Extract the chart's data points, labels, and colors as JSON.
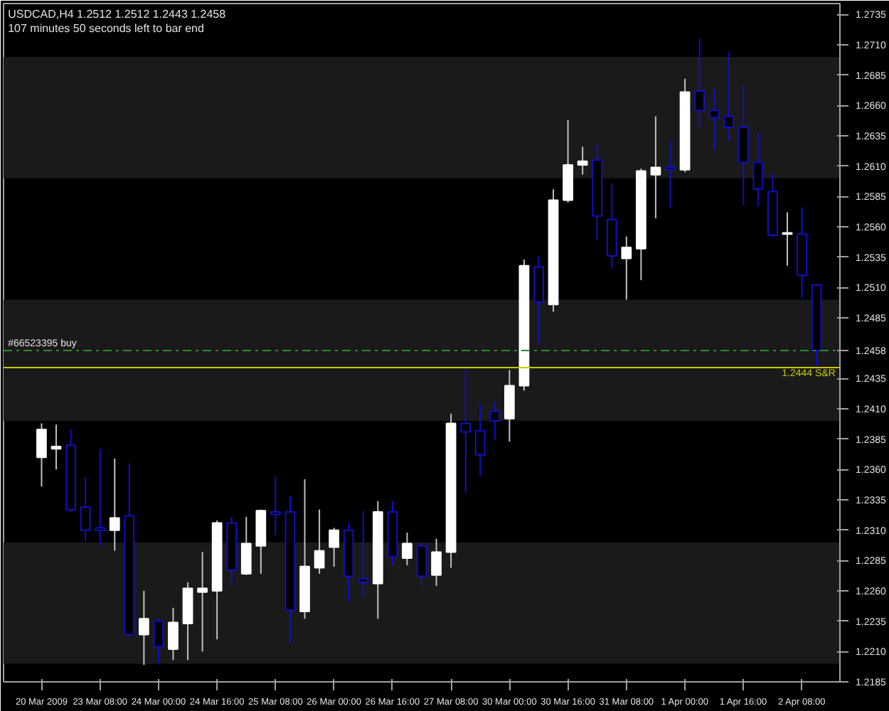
{
  "chart_data": {
    "type": "candlestick",
    "title": "USDCAD,H4  1.2512 1.2512 1.2443 1.2458",
    "subtitle": "107 minutes 50 seconds left to bar end",
    "categories": [
      "20 Mar 2009",
      null,
      null,
      null,
      "23 Mar 08:00",
      null,
      null,
      null,
      "24 Mar 00:00",
      null,
      null,
      null,
      "24 Mar 16:00",
      null,
      null,
      null,
      "25 Mar 08:00",
      null,
      null,
      null,
      "26 Mar 00:00",
      null,
      null,
      null,
      "26 Mar 16:00",
      null,
      null,
      null,
      "27 Mar 08:00",
      null,
      null,
      null,
      "30 Mar 00:00",
      null,
      null,
      null,
      "30 Mar 16:00",
      null,
      null,
      null,
      "31 Mar 08:00",
      null,
      null,
      null,
      "1 Apr 00:00",
      null,
      null,
      null,
      "1 Apr 16:00",
      null,
      null,
      null,
      "2 Apr 08:00",
      null
    ],
    "ohlc": [
      [
        1.237,
        1.2398,
        1.2346,
        1.2393
      ],
      [
        1.2377,
        1.2397,
        1.236,
        1.2379
      ],
      [
        1.238,
        1.2393,
        1.2325,
        1.2327
      ],
      [
        1.2329,
        1.2354,
        1.2301,
        1.231
      ],
      [
        1.2312,
        1.2377,
        1.2297,
        1.231
      ],
      [
        1.231,
        1.2369,
        1.2293,
        1.232
      ],
      [
        1.2322,
        1.2365,
        1.2222,
        1.2224
      ],
      [
        1.2224,
        1.226,
        1.2199,
        1.2237
      ],
      [
        1.2235,
        1.2237,
        1.22,
        1.2214
      ],
      [
        1.2212,
        1.2246,
        1.2203,
        1.2234
      ],
      [
        1.2233,
        1.2267,
        1.2203,
        1.2262
      ],
      [
        1.2259,
        1.2292,
        1.221,
        1.2262
      ],
      [
        1.226,
        1.2318,
        1.222,
        1.2316
      ],
      [
        1.2316,
        1.2321,
        1.2264,
        1.2277
      ],
      [
        1.2274,
        1.2321,
        1.2273,
        1.2299
      ],
      [
        1.2297,
        1.2327,
        1.2274,
        1.2326
      ],
      [
        1.2325,
        1.2354,
        1.2306,
        1.2323
      ],
      [
        1.2325,
        1.2338,
        1.2217,
        1.2244
      ],
      [
        1.2243,
        1.2352,
        1.2237,
        1.228
      ],
      [
        1.2279,
        1.2327,
        1.2274,
        1.2293
      ],
      [
        1.2296,
        1.2312,
        1.228,
        1.231
      ],
      [
        1.231,
        1.2316,
        1.2251,
        1.2272
      ],
      [
        1.227,
        1.2326,
        1.2254,
        1.2267
      ],
      [
        1.2266,
        1.2334,
        1.2237,
        1.2325
      ],
      [
        1.2325,
        1.2334,
        1.2281,
        1.2288
      ],
      [
        1.2287,
        1.2308,
        1.2281,
        1.2299
      ],
      [
        1.2297,
        1.23,
        1.2264,
        1.2272
      ],
      [
        1.2273,
        1.2303,
        1.2264,
        1.2292
      ],
      [
        1.2292,
        1.2406,
        1.2279,
        1.2398
      ],
      [
        1.2398,
        1.2444,
        1.2341,
        1.2391
      ],
      [
        1.2392,
        1.2414,
        1.2355,
        1.2372
      ],
      [
        1.2408,
        1.2416,
        1.2384,
        1.24
      ],
      [
        1.2402,
        1.2442,
        1.2383,
        1.2429
      ],
      [
        1.2429,
        1.2533,
        1.2425,
        1.2528
      ],
      [
        1.2527,
        1.2536,
        1.2464,
        1.2498
      ],
      [
        1.2496,
        1.2591,
        1.249,
        1.2582
      ],
      [
        1.2582,
        1.2648,
        1.258,
        1.2611
      ],
      [
        1.2611,
        1.2626,
        1.2603,
        1.2614
      ],
      [
        1.2615,
        1.2629,
        1.2549,
        1.2569
      ],
      [
        1.2566,
        1.2596,
        1.2526,
        1.2536
      ],
      [
        1.2534,
        1.2552,
        1.25,
        1.2543
      ],
      [
        1.2542,
        1.2608,
        1.2516,
        1.2606
      ],
      [
        1.2603,
        1.2651,
        1.2567,
        1.2609
      ],
      [
        1.2609,
        1.2631,
        1.2576,
        1.2607
      ],
      [
        1.2607,
        1.2682,
        1.2605,
        1.2671
      ],
      [
        1.2672,
        1.2715,
        1.2642,
        1.2656
      ],
      [
        1.2656,
        1.2674,
        1.2623,
        1.265
      ],
      [
        1.2651,
        1.2704,
        1.263,
        1.2642
      ],
      [
        1.2642,
        1.2677,
        1.2578,
        1.2613
      ],
      [
        1.2613,
        1.2638,
        1.2577,
        1.2591
      ],
      [
        1.2589,
        1.2604,
        1.2552,
        1.2553
      ],
      [
        1.2554,
        1.2572,
        1.2528,
        1.2555
      ],
      [
        1.2554,
        1.2576,
        1.2501,
        1.252
      ],
      [
        1.2512,
        1.2512,
        1.2443,
        1.2458
      ]
    ],
    "colors": [
      "#ffffff",
      "#ffffff",
      "#1010c0",
      "#1010c0",
      "#1010c0",
      "#ffffff",
      "#1010c0",
      "#ffffff",
      "#1010c0",
      "#ffffff",
      "#ffffff",
      "#ffffff",
      "#ffffff",
      "#1010c0",
      "#ffffff",
      "#ffffff",
      "#1010c0",
      "#1010c0",
      "#ffffff",
      "#ffffff",
      "#ffffff",
      "#1010c0",
      "#1010c0",
      "#ffffff",
      "#1010c0",
      "#ffffff",
      "#1010c0",
      "#ffffff",
      "#ffffff",
      "#1010c0",
      "#1010c0",
      "#1010c0",
      "#ffffff",
      "#ffffff",
      "#1010c0",
      "#ffffff",
      "#ffffff",
      "#ffffff",
      "#1010c0",
      "#1010c0",
      "#ffffff",
      "#ffffff",
      "#ffffff",
      "#1010c0",
      "#ffffff",
      "#1010c0",
      "#1010c0",
      "#1010c0",
      "#1010c0",
      "#1010c0",
      "#1010c0",
      "#ffffff",
      "#1010c0",
      "#1010c0"
    ],
    "ylim": [
      1.2185,
      1.2744
    ],
    "yticks": [
      {
        "value": 1.2185,
        "label": "1.2185"
      },
      {
        "value": 1.221,
        "label": "1.2210"
      },
      {
        "value": 1.2235,
        "label": "1.2235"
      },
      {
        "value": 1.226,
        "label": "1.2260"
      },
      {
        "value": 1.2285,
        "label": "1.2285"
      },
      {
        "value": 1.231,
        "label": "1.2310"
      },
      {
        "value": 1.2335,
        "label": "1.2335"
      },
      {
        "value": 1.236,
        "label": "1.2360"
      },
      {
        "value": 1.2385,
        "label": "1.2385"
      },
      {
        "value": 1.241,
        "label": "1.2410"
      },
      {
        "value": 1.2435,
        "label": "1.2435"
      },
      {
        "value": 1.2458,
        "label": "1.2458"
      },
      {
        "value": 1.2485,
        "label": "1.2485"
      },
      {
        "value": 1.251,
        "label": "1.2510"
      },
      {
        "value": 1.2535,
        "label": "1.2535"
      },
      {
        "value": 1.256,
        "label": "1.2560"
      },
      {
        "value": 1.2585,
        "label": "1.2585"
      },
      {
        "value": 1.261,
        "label": "1.2610"
      },
      {
        "value": 1.2635,
        "label": "1.2635"
      },
      {
        "value": 1.266,
        "label": "1.2660"
      },
      {
        "value": 1.2685,
        "label": "1.2685"
      },
      {
        "value": 1.271,
        "label": "1.2710"
      },
      {
        "value": 1.2735,
        "label": "1.2735"
      }
    ],
    "ref_lines": [
      {
        "axis": "y",
        "value": 1.2458,
        "label": "#66523395 buy",
        "color": "#2e8b2e",
        "line_style": "dashdot"
      },
      {
        "axis": "y",
        "value": 1.2444,
        "label": "1.2444 S&R",
        "color": "#c8c800",
        "line_style": "solid"
      }
    ],
    "bands": [
      {
        "axis": "y",
        "from": 1.26,
        "to": 1.27,
        "color": "#1a1a1a"
      },
      {
        "axis": "y",
        "from": 1.24,
        "to": 1.25,
        "color": "#1a1a1a"
      },
      {
        "axis": "y",
        "from": 1.22,
        "to": 1.23,
        "color": "#1a1a1a"
      }
    ],
    "grid": false
  }
}
